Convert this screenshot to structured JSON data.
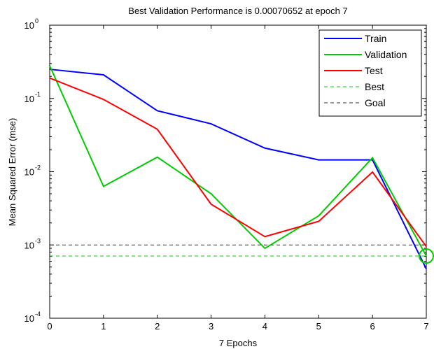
{
  "chart_data": {
    "type": "line",
    "title": "Best Validation Performance is 0.00070652 at epoch 7",
    "xlabel": "7 Epochs",
    "ylabel": "Mean Squared Error  (mse)",
    "yscale": "log",
    "xlim": [
      0,
      7
    ],
    "ylim": [
      0.0001,
      1
    ],
    "x_ticks": [
      "0",
      "1",
      "2",
      "3",
      "4",
      "5",
      "6",
      "7"
    ],
    "y_ticks": [
      {
        "value": 0.0001,
        "base": "10",
        "exp": "-4"
      },
      {
        "value": 0.001,
        "base": "10",
        "exp": "-3"
      },
      {
        "value": 0.01,
        "base": "10",
        "exp": "-2"
      },
      {
        "value": 0.1,
        "base": "10",
        "exp": "-1"
      },
      {
        "value": 1,
        "base": "10",
        "exp": "0"
      }
    ],
    "x": [
      0,
      1,
      2,
      3,
      4,
      5,
      6,
      7
    ],
    "series": [
      {
        "name": "Train",
        "color": "#0000ff",
        "style": "solid",
        "values": [
          0.25,
          0.21,
          0.068,
          0.045,
          0.021,
          0.0145,
          0.0145,
          0.00047
        ]
      },
      {
        "name": "Validation",
        "color": "#00cc00",
        "style": "solid",
        "values": [
          0.28,
          0.0063,
          0.0158,
          0.005,
          0.0009,
          0.0025,
          0.0155,
          0.00070652
        ]
      },
      {
        "name": "Test",
        "color": "#ff0000",
        "style": "solid",
        "values": [
          0.19,
          0.097,
          0.038,
          0.0036,
          0.0013,
          0.0021,
          0.0099,
          0.00095
        ]
      },
      {
        "name": "Best",
        "color": "#00cc00",
        "style": "dashed",
        "value": 0.00070652
      },
      {
        "name": "Goal",
        "color": "#333333",
        "style": "dashed",
        "value": 0.001
      }
    ],
    "best_point": {
      "x": 7,
      "y": 0.00070652,
      "color": "#00cc00"
    },
    "legend_position": "top-right",
    "grid": false
  }
}
